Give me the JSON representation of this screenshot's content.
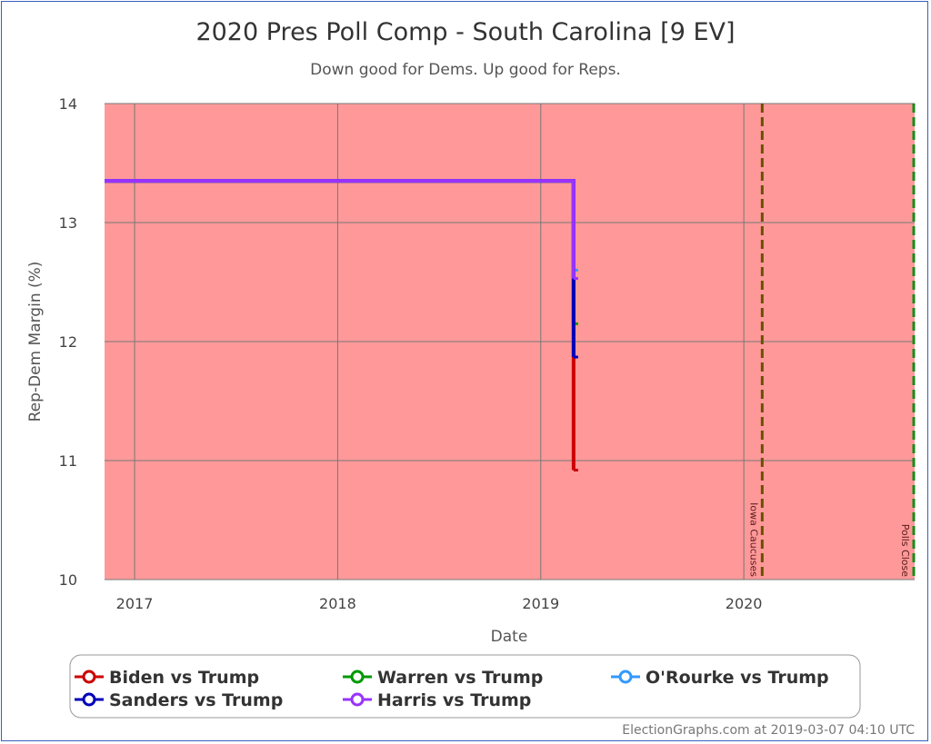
{
  "chart_data": {
    "type": "line",
    "title": "2020 Pres Poll Comp - South Carolina [9 EV]",
    "subtitle": "Down good for Dems. Up good for Reps.",
    "xlabel": "Date",
    "ylabel": "Rep-Dem Margin (%)",
    "xlim": [
      "2016-11-08",
      "2020-11-03"
    ],
    "ylim": [
      10,
      14
    ],
    "xticks": [
      {
        "date": "2017-01-01",
        "label": "2017"
      },
      {
        "date": "2018-01-01",
        "label": "2018"
      },
      {
        "date": "2019-01-01",
        "label": "2019"
      },
      {
        "date": "2020-01-01",
        "label": "2020"
      }
    ],
    "yticks": [
      10,
      11,
      12,
      13,
      14
    ],
    "grid": true,
    "background_color": "#ff9999",
    "legend_position": "bottom",
    "annotations": [
      {
        "date": "2020-02-03",
        "label": "Iowa Caucuses",
        "color": "#6b5000"
      },
      {
        "date": "2020-11-03",
        "label": "Polls Close",
        "color": "#1a8a1a"
      }
    ],
    "series": [
      {
        "name": "Biden vs Trump",
        "color": "#cc0000",
        "points": [
          [
            "2016-11-08",
            13.35
          ],
          [
            "2019-03-01",
            13.35
          ],
          [
            "2019-03-01",
            10.92
          ]
        ]
      },
      {
        "name": "Warren vs Trump",
        "color": "#009900",
        "points": [
          [
            "2016-11-08",
            13.35
          ],
          [
            "2019-03-01",
            13.35
          ],
          [
            "2019-03-01",
            12.15
          ]
        ]
      },
      {
        "name": "O'Rourke vs Trump",
        "color": "#3399ff",
        "points": [
          [
            "2016-11-08",
            13.35
          ],
          [
            "2019-03-01",
            13.35
          ],
          [
            "2019-03-01",
            12.6
          ]
        ]
      },
      {
        "name": "Sanders vs Trump",
        "color": "#0000bb",
        "points": [
          [
            "2016-11-08",
            13.35
          ],
          [
            "2019-03-01",
            13.35
          ],
          [
            "2019-03-01",
            11.87
          ]
        ]
      },
      {
        "name": "Harris vs Trump",
        "color": "#9933ff",
        "points": [
          [
            "2016-11-08",
            13.35
          ],
          [
            "2019-03-01",
            13.35
          ],
          [
            "2019-03-01",
            12.53
          ]
        ]
      }
    ]
  },
  "footer": "ElectionGraphs.com at 2019-03-07 04:10 UTC"
}
